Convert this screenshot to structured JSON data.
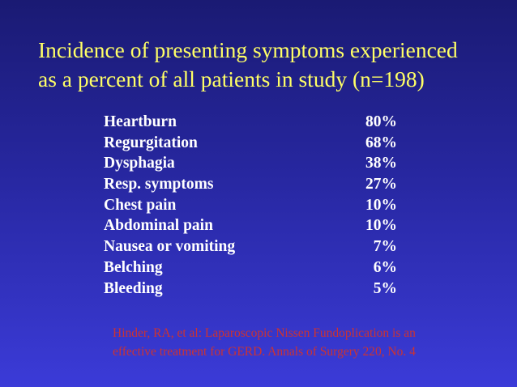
{
  "slide": {
    "title_lines": [
      "Incidence of presenting symptoms experienced",
      "as a percent of all patients in study (n=198)"
    ],
    "symptoms": [
      {
        "name": "Heartburn",
        "percent": "80%"
      },
      {
        "name": "Regurgitation",
        "percent": "68%"
      },
      {
        "name": "Dysphagia",
        "percent": "38%"
      },
      {
        "name": "Resp. symptoms",
        "percent": "27%"
      },
      {
        "name": "Chest pain",
        "percent": "10%"
      },
      {
        "name": "Abdominal pain",
        "percent": "10%"
      },
      {
        "name": "Nausea or vomiting",
        "percent": "7%"
      },
      {
        "name": "Belching",
        "percent": "6%"
      },
      {
        "name": "Bleeding",
        "percent": "5%"
      }
    ],
    "citation_lines": [
      "Hinder, RA, et al: Laparoscopic Nissen Fundoplication is an",
      "effective treatment for GERD. Annals of Surgery 220, No. 4"
    ]
  },
  "colors": {
    "title": "#ffff66",
    "body_text": "#ffffff",
    "citation": "#cc3333",
    "background_top": "#1a1a73",
    "background_bottom": "#3b3bd8"
  }
}
